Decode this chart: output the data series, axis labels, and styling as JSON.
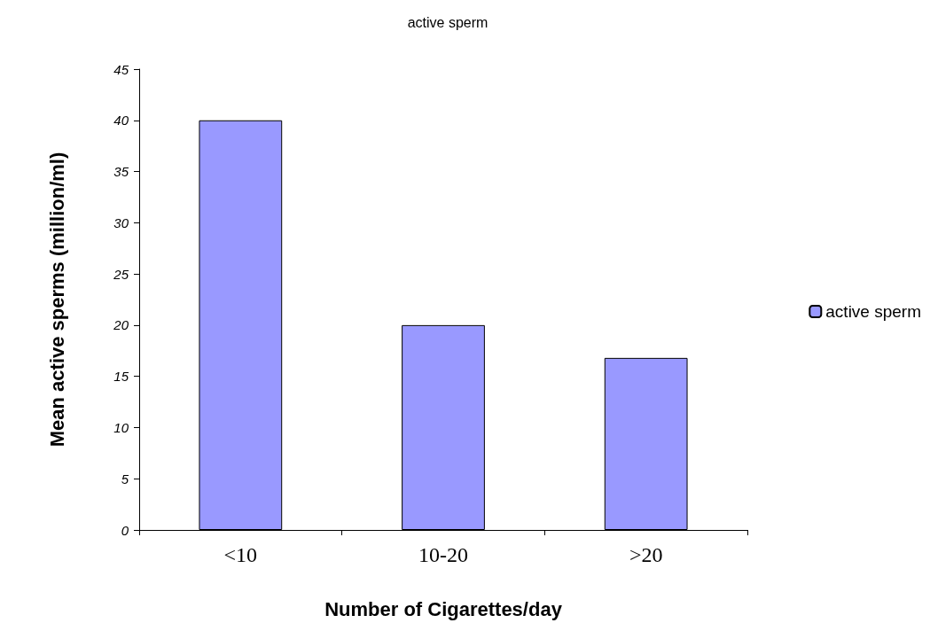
{
  "chart_data": {
    "type": "bar",
    "title": "active sperm",
    "xlabel": "Number of Cigarettes/day",
    "ylabel": "Mean active sperms (million/ml)",
    "categories": [
      "<10",
      "10-20",
      ">20"
    ],
    "series": [
      {
        "name": "active sperm",
        "color": "#9999ff",
        "values": [
          40,
          20,
          16.8
        ]
      }
    ],
    "ylim": [
      0,
      45
    ],
    "yticks": [
      0,
      5,
      10,
      15,
      20,
      25,
      30,
      35,
      40,
      45
    ],
    "grid": false,
    "legend": "right"
  }
}
